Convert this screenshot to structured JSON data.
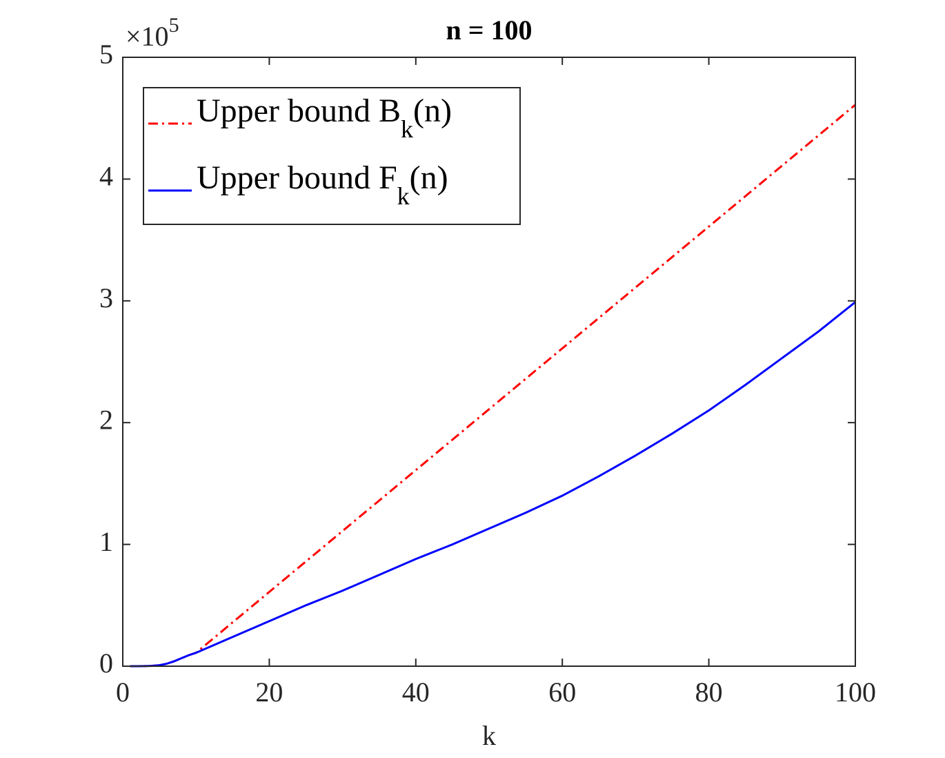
{
  "chart_data": {
    "type": "line",
    "title": "n = 100",
    "x_label": "k",
    "y_scale_label": {
      "base": "×10",
      "exponent": "5"
    },
    "x": [
      1,
      2,
      3,
      4,
      5,
      6,
      7,
      8,
      9,
      10,
      15,
      20,
      25,
      30,
      35,
      40,
      45,
      50,
      55,
      60,
      65,
      70,
      75,
      80,
      85,
      90,
      95,
      100
    ],
    "series": [
      {
        "name": "Upper bound B",
        "name_sub": "k",
        "name_end": "(n)",
        "color": "#ff0000",
        "dash": "dashdot",
        "values": [
          0,
          0.0002,
          0.001,
          0.003,
          0.008,
          0.02,
          0.04,
          0.065,
          0.09,
          0.11,
          0.36,
          0.61,
          0.86,
          1.11,
          1.36,
          1.61,
          1.86,
          2.11,
          2.36,
          2.61,
          2.86,
          3.11,
          3.36,
          3.61,
          3.86,
          4.11,
          4.36,
          4.61
        ]
      },
      {
        "name": "Upper bound F",
        "name_sub": "k",
        "name_end": "(n)",
        "color": "#0000ff",
        "dash": "solid",
        "values": [
          0,
          0.0002,
          0.001,
          0.003,
          0.008,
          0.02,
          0.04,
          0.065,
          0.09,
          0.11,
          0.24,
          0.37,
          0.5,
          0.62,
          0.75,
          0.88,
          1.0,
          1.13,
          1.26,
          1.4,
          1.56,
          1.73,
          1.91,
          2.1,
          2.31,
          2.53,
          2.75,
          2.99
        ]
      }
    ],
    "xlim": [
      0,
      100
    ],
    "xticks": [
      0,
      20,
      40,
      60,
      80,
      100
    ],
    "ylim": [
      0,
      5
    ],
    "yticks": [
      0,
      1,
      2,
      3,
      4,
      5
    ],
    "grid": false,
    "legend": "upper left"
  }
}
